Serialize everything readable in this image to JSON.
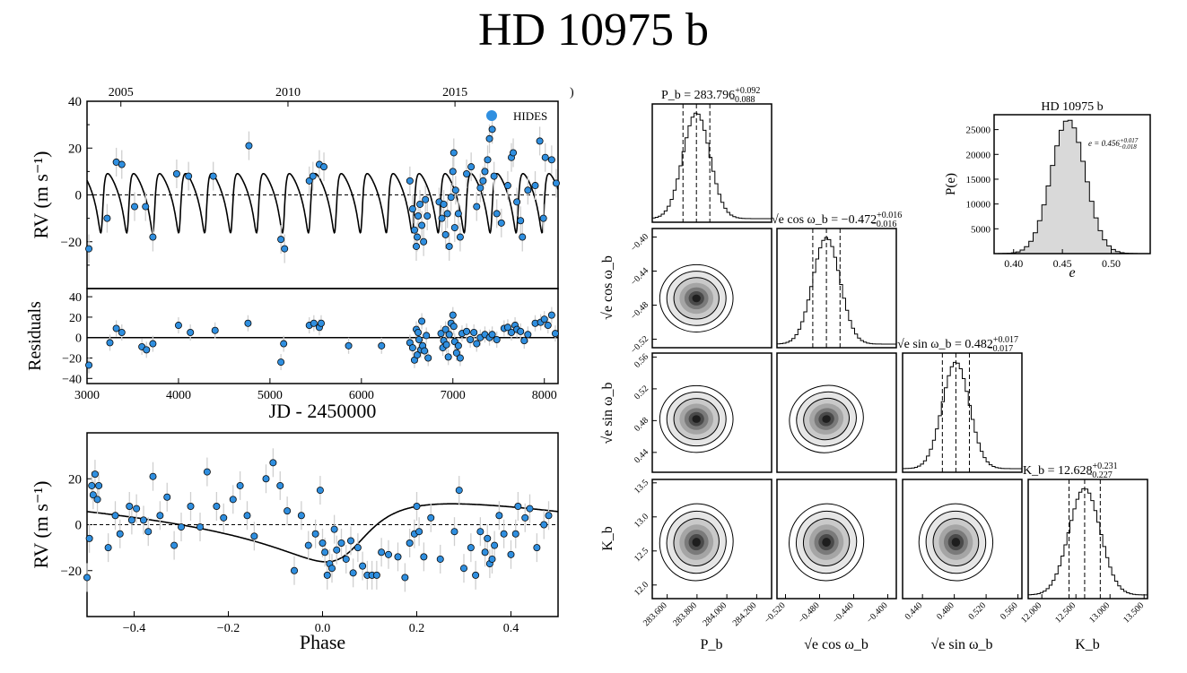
{
  "title": "HD 10975 b",
  "colors": {
    "point_fill": "#2f8fe0",
    "point_stroke": "#0a0a0a",
    "errbar": "#cfcfcf",
    "hist_fill": "#d9d9d9"
  },
  "rv_time": {
    "type": "scatter",
    "top_ticks": [
      "2005",
      "2010",
      "2015",
      ")"
    ],
    "top_tick_jd": [
      3370,
      5197,
      7023,
      8300
    ],
    "ylabel": "RV (m s⁻¹)",
    "ylim": [
      -40,
      40
    ],
    "yticks": [
      -20,
      0,
      20,
      40
    ],
    "xlim": [
      3000,
      8150
    ],
    "legend_label": "HIDES",
    "model": {
      "period": 283.796,
      "semi_amplitude": 12.628,
      "eccentricity": 0.456,
      "t_peri": 3165
    },
    "points": [
      [
        3020,
        -23
      ],
      [
        3220,
        -10
      ],
      [
        3320,
        14
      ],
      [
        3380,
        13
      ],
      [
        3520,
        -5
      ],
      [
        3640,
        -5
      ],
      [
        3720,
        -18
      ],
      [
        3980,
        9
      ],
      [
        4110,
        8
      ],
      [
        4380,
        8
      ],
      [
        4770,
        21
      ],
      [
        5120,
        -19
      ],
      [
        5160,
        -23
      ],
      [
        5430,
        6
      ],
      [
        5470,
        8
      ],
      [
        5540,
        13
      ],
      [
        5590,
        12
      ],
      [
        6530,
        6
      ],
      [
        6560,
        -6
      ],
      [
        6580,
        -15
      ],
      [
        6600,
        -22
      ],
      [
        6610,
        -18
      ],
      [
        6620,
        -9
      ],
      [
        6640,
        -4
      ],
      [
        6660,
        -13
      ],
      [
        6680,
        -20
      ],
      [
        6700,
        -2
      ],
      [
        6720,
        -9
      ],
      [
        6850,
        -3
      ],
      [
        6880,
        -10
      ],
      [
        6900,
        -4
      ],
      [
        6920,
        -17
      ],
      [
        6940,
        -8
      ],
      [
        6960,
        -22
      ],
      [
        6980,
        -1
      ],
      [
        7000,
        10
      ],
      [
        7010,
        18
      ],
      [
        7020,
        -14
      ],
      [
        7030,
        2
      ],
      [
        7060,
        -8
      ],
      [
        7080,
        -18
      ],
      [
        7150,
        9
      ],
      [
        7200,
        12
      ],
      [
        7260,
        -5
      ],
      [
        7300,
        3
      ],
      [
        7330,
        6
      ],
      [
        7350,
        10
      ],
      [
        7380,
        15
      ],
      [
        7400,
        24
      ],
      [
        7430,
        28
      ],
      [
        7450,
        8
      ],
      [
        7480,
        -8
      ],
      [
        7530,
        -12
      ],
      [
        7600,
        4
      ],
      [
        7640,
        16
      ],
      [
        7660,
        18
      ],
      [
        7700,
        -3
      ],
      [
        7740,
        -11
      ],
      [
        7760,
        -18
      ],
      [
        7820,
        2
      ],
      [
        7900,
        4
      ],
      [
        7950,
        23
      ],
      [
        7990,
        -10
      ],
      [
        8010,
        16
      ],
      [
        8080,
        15
      ],
      [
        8130,
        5
      ]
    ]
  },
  "residuals": {
    "ylabel": "Residuals",
    "ylim": [
      -45,
      48
    ],
    "yticks": [
      -40,
      -20,
      0,
      20,
      40
    ],
    "xlabel": "JD - 2450000",
    "xticks": [
      3000,
      4000,
      5000,
      6000,
      7000,
      8000
    ],
    "points": [
      [
        3020,
        -27
      ],
      [
        3250,
        -5
      ],
      [
        3320,
        9
      ],
      [
        3380,
        5
      ],
      [
        3600,
        -9
      ],
      [
        3650,
        -12
      ],
      [
        3720,
        -6
      ],
      [
        4000,
        12
      ],
      [
        4130,
        5
      ],
      [
        4400,
        7
      ],
      [
        4760,
        14
      ],
      [
        5120,
        -24
      ],
      [
        5150,
        -6
      ],
      [
        5430,
        12
      ],
      [
        5480,
        14
      ],
      [
        5540,
        10
      ],
      [
        5560,
        14
      ],
      [
        5860,
        -8
      ],
      [
        6220,
        -8
      ],
      [
        6530,
        -5
      ],
      [
        6560,
        -10
      ],
      [
        6580,
        -22
      ],
      [
        6600,
        8
      ],
      [
        6610,
        -17
      ],
      [
        6620,
        5
      ],
      [
        6630,
        -2
      ],
      [
        6650,
        -12
      ],
      [
        6660,
        16
      ],
      [
        6670,
        -8
      ],
      [
        6690,
        -13
      ],
      [
        6710,
        2
      ],
      [
        6730,
        -20
      ],
      [
        6870,
        4
      ],
      [
        6890,
        -10
      ],
      [
        6900,
        -3
      ],
      [
        6920,
        8
      ],
      [
        6930,
        -7
      ],
      [
        6950,
        -19
      ],
      [
        6960,
        3
      ],
      [
        6980,
        14
      ],
      [
        7000,
        22
      ],
      [
        7010,
        11
      ],
      [
        7020,
        -4
      ],
      [
        7040,
        -15
      ],
      [
        7060,
        -8
      ],
      [
        7080,
        -20
      ],
      [
        7100,
        4
      ],
      [
        7150,
        6
      ],
      [
        7190,
        -2
      ],
      [
        7230,
        5
      ],
      [
        7260,
        -6
      ],
      [
        7300,
        0
      ],
      [
        7350,
        3
      ],
      [
        7400,
        0
      ],
      [
        7430,
        3
      ],
      [
        7480,
        -2
      ],
      [
        7560,
        9
      ],
      [
        7600,
        10
      ],
      [
        7640,
        5
      ],
      [
        7680,
        12
      ],
      [
        7700,
        8
      ],
      [
        7740,
        6
      ],
      [
        7780,
        -3
      ],
      [
        7820,
        3
      ],
      [
        7900,
        14
      ],
      [
        7960,
        15
      ],
      [
        8000,
        18
      ],
      [
        8040,
        12
      ],
      [
        8080,
        22
      ],
      [
        8120,
        4
      ]
    ]
  },
  "phase": {
    "xlabel": "Phase",
    "ylabel": "RV (m s⁻¹)",
    "xlim": [
      -0.5,
      0.5
    ],
    "ylim": [
      -40,
      40
    ],
    "xticks": [
      -0.4,
      -0.2,
      0.0,
      0.2,
      0.4
    ],
    "xtick_labels": [
      "−0.4",
      "−0.2",
      "0.0",
      "0.2",
      "0.4"
    ],
    "yticks": [
      -20,
      0,
      20
    ],
    "yticklabels": [
      "−20",
      "0",
      "20"
    ],
    "points": [
      [
        -0.5,
        -23
      ],
      [
        -0.495,
        -6
      ],
      [
        -0.49,
        17
      ],
      [
        -0.487,
        13
      ],
      [
        -0.483,
        22
      ],
      [
        -0.478,
        11
      ],
      [
        -0.475,
        17
      ],
      [
        -0.455,
        -10
      ],
      [
        -0.44,
        4
      ],
      [
        -0.43,
        -4
      ],
      [
        -0.41,
        8
      ],
      [
        -0.405,
        2
      ],
      [
        -0.395,
        7
      ],
      [
        -0.38,
        2
      ],
      [
        -0.37,
        -3
      ],
      [
        -0.36,
        21
      ],
      [
        -0.345,
        4
      ],
      [
        -0.33,
        12
      ],
      [
        -0.315,
        -9
      ],
      [
        -0.3,
        -1
      ],
      [
        -0.28,
        8
      ],
      [
        -0.26,
        -1
      ],
      [
        -0.245,
        23
      ],
      [
        -0.225,
        8
      ],
      [
        -0.21,
        3
      ],
      [
        -0.19,
        11
      ],
      [
        -0.175,
        17
      ],
      [
        -0.16,
        4
      ],
      [
        -0.145,
        -5
      ],
      [
        -0.12,
        20
      ],
      [
        -0.105,
        27
      ],
      [
        -0.09,
        17
      ],
      [
        -0.075,
        6
      ],
      [
        -0.06,
        -20
      ],
      [
        -0.045,
        4
      ],
      [
        -0.03,
        -9
      ],
      [
        -0.015,
        -4
      ],
      [
        -0.005,
        15
      ],
      [
        0.0,
        -8
      ],
      [
        0.005,
        -12
      ],
      [
        0.01,
        -22
      ],
      [
        0.015,
        -17
      ],
      [
        0.02,
        -19
      ],
      [
        0.025,
        -2
      ],
      [
        0.03,
        -11
      ],
      [
        0.04,
        -8
      ],
      [
        0.05,
        -15
      ],
      [
        0.06,
        -7
      ],
      [
        0.065,
        -21
      ],
      [
        0.075,
        -10
      ],
      [
        0.085,
        -18
      ],
      [
        0.095,
        -22
      ],
      [
        0.105,
        -22
      ],
      [
        0.115,
        -22
      ],
      [
        0.125,
        -12
      ],
      [
        0.14,
        -13
      ],
      [
        0.16,
        -14
      ],
      [
        0.175,
        -23
      ],
      [
        0.185,
        -8
      ],
      [
        0.195,
        -4
      ],
      [
        0.2,
        8
      ],
      [
        0.205,
        -3
      ],
      [
        0.215,
        -14
      ],
      [
        0.23,
        3
      ],
      [
        0.25,
        -15
      ],
      [
        0.28,
        -3
      ],
      [
        0.29,
        15
      ],
      [
        0.3,
        -19
      ],
      [
        0.315,
        -10
      ],
      [
        0.325,
        -22
      ],
      [
        0.335,
        -3
      ],
      [
        0.345,
        -12
      ],
      [
        0.35,
        -6
      ],
      [
        0.355,
        -17
      ],
      [
        0.36,
        -15
      ],
      [
        0.365,
        -9
      ],
      [
        0.375,
        4
      ],
      [
        0.385,
        -4
      ],
      [
        0.4,
        -13
      ],
      [
        0.41,
        -4
      ],
      [
        0.415,
        8
      ],
      [
        0.43,
        3
      ],
      [
        0.44,
        7
      ],
      [
        0.455,
        -10
      ],
      [
        0.47,
        0
      ],
      [
        0.48,
        4
      ]
    ]
  },
  "corner": {
    "labels": [
      "P_b",
      "√e cos ω_b",
      "√e sin ω_b",
      "K_b"
    ],
    "medians": [
      283.796,
      -0.472,
      0.482,
      12.628
    ],
    "sigmas": [
      0.09,
      0.016,
      0.017,
      0.229
    ],
    "ranges": [
      [
        283.5,
        284.3
      ],
      [
        -0.53,
        -0.39
      ],
      [
        0.415,
        0.565
      ],
      [
        11.8,
        13.55
      ]
    ],
    "titles": [
      {
        "lhs": "P_b = 283.796",
        "up": "+0.092",
        "down": "−0.088"
      },
      {
        "lhs": "√e cos ω_b = −0.472",
        "up": "+0.016",
        "down": "−0.016"
      },
      {
        "lhs": "√e sin ω_b = 0.482",
        "up": "+0.017",
        "down": "−0.017"
      },
      {
        "lhs": "K_b = 12.628",
        "up": "+0.231",
        "down": "−0.227"
      }
    ],
    "xtick_labels": [
      [
        "283.600",
        "283.800",
        "284.000",
        "284.200"
      ],
      [
        "−0.520",
        "−0.480",
        "−0.440",
        "−0.400"
      ],
      [
        "0.440",
        "0.480",
        "0.520",
        "0.560"
      ],
      [
        "12.000",
        "12.500",
        "13.000",
        "13.500"
      ]
    ],
    "xtick_values": [
      [
        283.6,
        283.8,
        284.0,
        284.2
      ],
      [
        -0.52,
        -0.48,
        -0.44,
        -0.4
      ],
      [
        0.44,
        0.48,
        0.52,
        0.56
      ],
      [
        12.0,
        12.5,
        13.0,
        13.5
      ]
    ],
    "ytick_labels": [
      [],
      [
        "−0.52",
        "−0.48",
        "−0.44",
        "−0.40"
      ],
      [
        "0.44",
        "0.48",
        "0.52",
        "0.56"
      ],
      [
        "12.0",
        "12.5",
        "13.0",
        "13.5"
      ]
    ],
    "ytick_values": [
      [],
      [
        -0.52,
        -0.48,
        -0.44,
        -0.4
      ],
      [
        0.44,
        0.48,
        0.52,
        0.56
      ],
      [
        12.0,
        12.5,
        13.0,
        13.5
      ]
    ],
    "correlations": [
      [
        1,
        0,
        0,
        0
      ],
      [
        0,
        1,
        0,
        0
      ],
      [
        0,
        0.25,
        1,
        0
      ],
      [
        -0.2,
        -0.25,
        0.1,
        1
      ]
    ]
  },
  "ecc_hist": {
    "type": "histogram",
    "title": "HD 10975 b",
    "xlabel": "e",
    "ylabel": "P(e)",
    "xlim": [
      0.38,
      0.54
    ],
    "ylim": [
      0,
      28000
    ],
    "xticks": [
      0.4,
      0.45,
      0.5
    ],
    "xtick_labels": [
      "0.40",
      "0.45",
      "0.50"
    ],
    "yticks": [
      5000,
      10000,
      15000,
      20000,
      25000
    ],
    "ytick_labels": [
      "5000",
      "10000",
      "15000",
      "20000",
      "25000"
    ],
    "annotation": {
      "lhs": "e = 0.456",
      "up": "+0.017",
      "down": "−0.018"
    },
    "mean": 0.456,
    "sigma": 0.0175,
    "peak": 27000
  }
}
